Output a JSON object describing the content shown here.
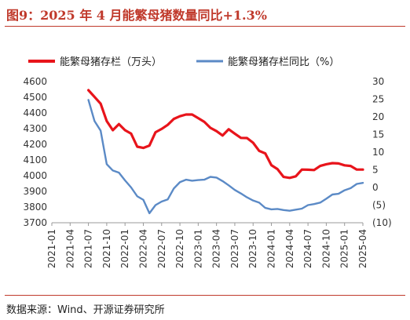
{
  "header": {
    "title": "图9：2025 年 4 月能繁母猪数量同比+1.3%"
  },
  "footer": {
    "source": "数据来源：Wind、开源证券研究所"
  },
  "colors": {
    "inventory": "#e8141b",
    "yoy": "#5b8ac6",
    "title": "#c0392b",
    "negative": "#e8141b"
  },
  "chart_data": {
    "type": "line",
    "x": [
      "2021-07",
      "2021-08",
      "2021-09",
      "2021-10",
      "2021-11",
      "2021-12",
      "2022-01",
      "2022-02",
      "2022-03",
      "2022-04",
      "2022-05",
      "2022-06",
      "2022-07",
      "2022-08",
      "2022-09",
      "2022-10",
      "2022-11",
      "2022-12",
      "2023-01",
      "2023-02",
      "2023-03",
      "2023-04",
      "2023-05",
      "2023-06",
      "2023-07",
      "2023-08",
      "2023-09",
      "2023-10",
      "2023-11",
      "2023-12",
      "2024-01",
      "2024-02",
      "2024-03",
      "2024-04",
      "2024-05",
      "2024-06",
      "2024-07",
      "2024-08",
      "2024-09",
      "2024-10",
      "2024-11",
      "2024-12",
      "2025-01",
      "2025-02",
      "2025-03",
      "2025-04"
    ],
    "xtick_labels": [
      "2021-01",
      "2021-04",
      "2021-07",
      "2021-10",
      "2022-01",
      "2022-04",
      "2022-07",
      "2022-10",
      "2023-01",
      "2023-04",
      "2023-07",
      "2023-10",
      "2024-01",
      "2024-04",
      "2024-07",
      "2024-10",
      "2025-01",
      "2025-04"
    ],
    "series": [
      {
        "name": "能繁母猪存栏（万头）",
        "axis": "left",
        "values": [
          4545,
          4502,
          4459,
          4348,
          4290,
          4329,
          4290,
          4268,
          4185,
          4177,
          4192,
          4277,
          4298,
          4324,
          4362,
          4379,
          4390,
          4390,
          4367,
          4343,
          4305,
          4284,
          4256,
          4296,
          4268,
          4241,
          4240,
          4210,
          4158,
          4142,
          4067,
          4042,
          3992,
          3986,
          3996,
          4039,
          4038,
          4036,
          4062,
          4073,
          4080,
          4078,
          4066,
          4062,
          4039,
          4039
        ]
      },
      {
        "name": "能繁母猪存栏同比（%）",
        "axis": "right",
        "values": [
          24.8,
          18.8,
          16.1,
          6.6,
          4.8,
          4.2,
          2.0,
          0.0,
          -2.5,
          -3.5,
          -7.3,
          -5.0,
          -4.0,
          -3.4,
          -0.3,
          1.5,
          2.2,
          1.9,
          2.1,
          2.2,
          3.0,
          2.8,
          1.8,
          0.6,
          -0.7,
          -1.7,
          -2.8,
          -3.7,
          -4.3,
          -5.8,
          -6.2,
          -6.1,
          -6.4,
          -6.6,
          -6.3,
          -6.0,
          -5.0,
          -4.7,
          -4.3,
          -3.2,
          -2.0,
          -1.8,
          -0.8,
          -0.2,
          1.0,
          1.3
        ]
      }
    ],
    "y_left": {
      "min": 3700,
      "max": 4600,
      "step": 100,
      "ticks": [
        "4600",
        "4500",
        "4400",
        "4300",
        "4200",
        "4100",
        "4000",
        "3900",
        "3800",
        "3700"
      ]
    },
    "y_right": {
      "min": -10,
      "max": 30,
      "step": 5,
      "ticks": [
        "30",
        "25",
        "20",
        "15",
        "10",
        "5",
        "0",
        "(5)",
        "(10)"
      ]
    },
    "grid": false,
    "legend_position": "top"
  }
}
